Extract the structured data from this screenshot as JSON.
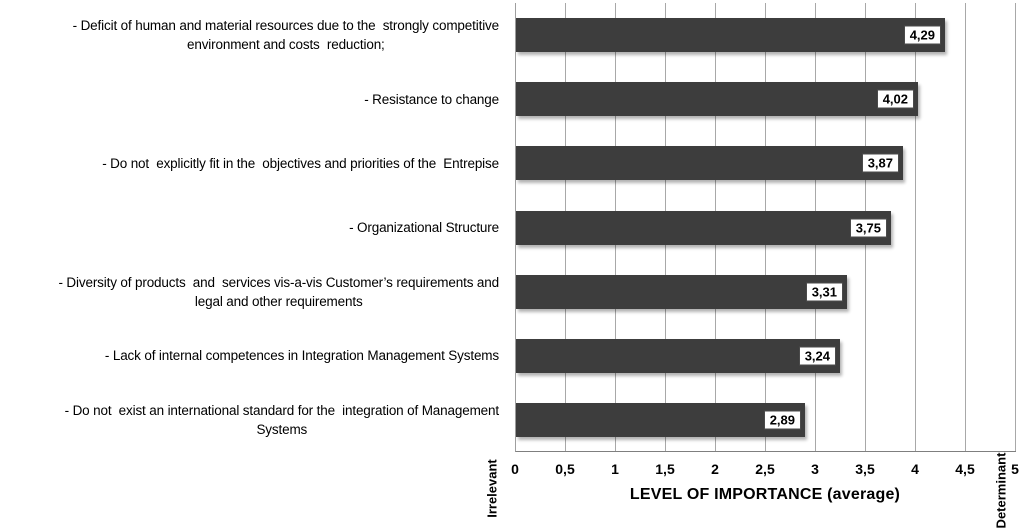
{
  "chart_data": {
    "type": "bar",
    "orientation": "horizontal",
    "title": "",
    "xlabel": "LEVEL OF IMPORTANCE (average)",
    "categories": [
      "- Deficit of human and material resources due to the  strongly competitive\nenvironment and costs  reduction;",
      "- Resistance to change",
      "- Do not  explicitly fit in the  objectives and priorities of the  Entrepise",
      "- Organizational Structure",
      "- Diversity of products  and  services vis-a-vis Customer’s requirements and\nlegal and other requirements",
      "- Lack of internal competences in Integration Management Systems",
      "- Do not  exist an international standard for the  integration of Management\nSystems"
    ],
    "values": [
      4.29,
      4.02,
      3.87,
      3.75,
      3.31,
      3.24,
      2.89
    ],
    "value_labels": [
      "4,29",
      "4,02",
      "3,87",
      "3,75",
      "3,31",
      "3,24",
      "2,89"
    ],
    "xlim": [
      0,
      5
    ],
    "xticks": [
      "0",
      "0,5",
      "1",
      "1,5",
      "2",
      "2,5",
      "3",
      "3,5",
      "4",
      "4,5",
      "5"
    ],
    "xtick_values": [
      0,
      0.5,
      1,
      1.5,
      2,
      2.5,
      3,
      3.5,
      4,
      4.5,
      5
    ],
    "axis_min_label": "Irrelevant",
    "axis_max_label": "Determinant",
    "grid": true,
    "legend": false,
    "colors": {
      "bar": "#3d3d3d",
      "gridline": "#a8a8a8",
      "axis_line": "#7f7f7f",
      "value_box_bg": "#ffffff",
      "value_box_border": "#4a4a4a",
      "text": "#000000"
    }
  }
}
